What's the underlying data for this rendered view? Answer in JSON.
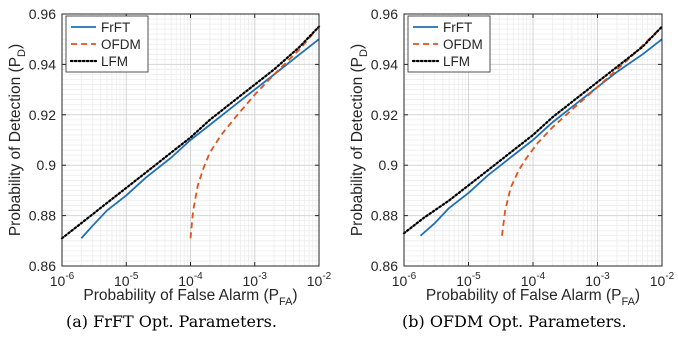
{
  "figure": {
    "captions": [
      "(a) FrFT Opt. Parameters.",
      "(b) OFDM Opt. Parameters."
    ]
  },
  "chart_data": [
    {
      "type": "line",
      "title": "",
      "xlabel": "Probability of False Alarm (P",
      "xlabel_sub": "FA",
      "xlabel_close": ")",
      "ylabel": "Probability of Detection (P",
      "ylabel_sub": "D",
      "ylabel_close": ")",
      "x_scale": "log",
      "xlim": [
        1e-06,
        0.01
      ],
      "ylim": [
        0.86,
        0.96
      ],
      "xticks": [
        -6,
        -5,
        -4,
        -3,
        -2
      ],
      "yticks": [
        "0.86",
        "0.88",
        "0.9",
        "0.92",
        "0.94",
        "0.96"
      ],
      "grid": true,
      "legend": "top-left",
      "series": [
        {
          "name": "FrFT",
          "color": "#1f6fb5",
          "style": "solid",
          "x": [
            2e-06,
            3e-06,
            5e-06,
            1e-05,
            2e-05,
            5e-05,
            0.0001,
            0.0002,
            0.0005,
            0.001,
            0.002,
            0.005,
            0.01
          ],
          "y": [
            0.871,
            0.876,
            0.882,
            0.888,
            0.895,
            0.903,
            0.91,
            0.916,
            0.924,
            0.93,
            0.936,
            0.944,
            0.95
          ]
        },
        {
          "name": "OFDM",
          "color": "#e2531e",
          "style": "dashed",
          "x": [
            0.0001,
            0.00011,
            0.00013,
            0.00016,
            0.0002,
            0.0003,
            0.0005,
            0.001,
            0.002,
            0.005,
            0.01
          ],
          "y": [
            0.871,
            0.882,
            0.892,
            0.899,
            0.905,
            0.912,
            0.919,
            0.928,
            0.936,
            0.946,
            0.955
          ]
        },
        {
          "name": "LFM",
          "color": "#000000",
          "style": "dotted",
          "x": [
            1e-06,
            2e-06,
            5e-06,
            1e-05,
            2e-05,
            5e-05,
            0.0001,
            0.0002,
            0.0005,
            0.001,
            0.002,
            0.005,
            0.01
          ],
          "y": [
            0.871,
            0.877,
            0.885,
            0.891,
            0.897,
            0.905,
            0.911,
            0.918,
            0.926,
            0.932,
            0.938,
            0.947,
            0.955
          ]
        }
      ]
    },
    {
      "type": "line",
      "title": "",
      "xlabel": "Probability of False Alarm (P",
      "xlabel_sub": "FA",
      "xlabel_close": ")",
      "ylabel": "Probability of Detection (P",
      "ylabel_sub": "D",
      "ylabel_close": ")",
      "x_scale": "log",
      "xlim": [
        1e-06,
        0.01
      ],
      "ylim": [
        0.86,
        0.96
      ],
      "xticks": [
        -6,
        -5,
        -4,
        -3,
        -2
      ],
      "yticks": [
        "0.86",
        "0.88",
        "0.9",
        "0.92",
        "0.94",
        "0.96"
      ],
      "grid": true,
      "legend": "top-left",
      "series": [
        {
          "name": "FrFT",
          "color": "#1f6fb5",
          "style": "solid",
          "x": [
            1.8e-06,
            3e-06,
            5e-06,
            1e-05,
            2e-05,
            5e-05,
            0.0001,
            0.0002,
            0.0005,
            0.001,
            0.002,
            0.005,
            0.01
          ],
          "y": [
            0.872,
            0.877,
            0.883,
            0.889,
            0.896,
            0.904,
            0.91,
            0.917,
            0.925,
            0.931,
            0.937,
            0.944,
            0.95
          ]
        },
        {
          "name": "OFDM",
          "color": "#e2531e",
          "style": "dashed",
          "x": [
            3.3e-05,
            3.7e-05,
            4.5e-05,
            6e-05,
            8e-05,
            0.00012,
            0.0002,
            0.0004,
            0.001,
            0.003,
            0.01
          ],
          "y": [
            0.872,
            0.882,
            0.891,
            0.898,
            0.903,
            0.909,
            0.915,
            0.922,
            0.931,
            0.942,
            0.955
          ]
        },
        {
          "name": "LFM",
          "color": "#000000",
          "style": "dotted",
          "x": [
            1e-06,
            2e-06,
            5e-06,
            1e-05,
            2e-05,
            5e-05,
            0.0001,
            0.0002,
            0.0005,
            0.001,
            0.002,
            0.005,
            0.01
          ],
          "y": [
            0.873,
            0.879,
            0.886,
            0.892,
            0.898,
            0.906,
            0.912,
            0.919,
            0.927,
            0.933,
            0.939,
            0.947,
            0.955
          ]
        }
      ]
    }
  ]
}
